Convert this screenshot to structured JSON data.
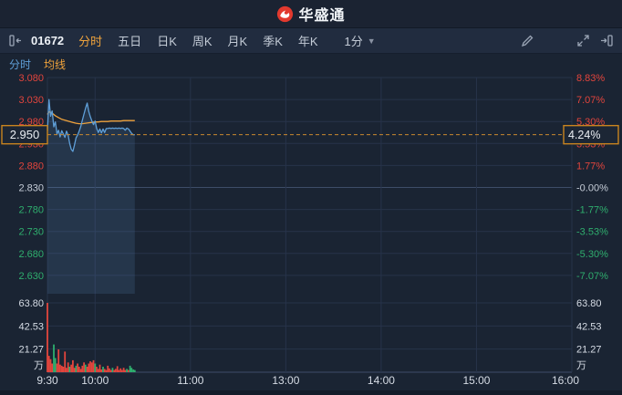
{
  "header": {
    "app_name": "华盛通"
  },
  "toolbar": {
    "stock_code": "01672",
    "tabs": [
      {
        "label": "分时",
        "active": true
      },
      {
        "label": "五日",
        "active": false
      },
      {
        "label": "日K",
        "active": false
      },
      {
        "label": "周K",
        "active": false
      },
      {
        "label": "月K",
        "active": false
      },
      {
        "label": "季K",
        "active": false
      },
      {
        "label": "年K",
        "active": false
      }
    ],
    "interval_label": "1分",
    "icons": [
      "collapse-left",
      "edit",
      "fullscreen",
      "dock-right"
    ]
  },
  "legend": {
    "items": [
      {
        "label": "分时",
        "color": "#5f9fd8"
      },
      {
        "label": "均线",
        "color": "#f0a33c"
      }
    ]
  },
  "colors": {
    "up": "#e2453d",
    "down": "#2fae6e",
    "neutral": "#c6cdd8",
    "line": "#5f9fd8",
    "line_fill": "rgba(98,152,204,0.16)",
    "ma": "#f0a33c",
    "grid": "#27334a",
    "grid_bright": "#3d4d68",
    "axis_text": "#d6dce5",
    "tag_border": "#c9841f",
    "tag_text": "#e9edf2",
    "dashed": "#c9882f"
  },
  "chart_data": {
    "type": "line",
    "title": "01672 分时图 (intraday minute chart)",
    "current": {
      "price": "2.950",
      "change_pct": "4.24%"
    },
    "price_axis": {
      "max": 3.08,
      "min": 2.63,
      "step": 0.05,
      "prev_close": 2.83,
      "left_labels": [
        "3.080",
        "3.030",
        "2.980",
        "2.930",
        "2.880",
        "2.830",
        "2.780",
        "2.730",
        "2.680",
        "2.630"
      ],
      "right_labels": [
        "8.83%",
        "7.07%",
        "5.30%",
        "3.53%",
        "1.77%",
        "-0.00%",
        "-1.77%",
        "-3.53%",
        "-5.30%",
        "-7.07%"
      ]
    },
    "volume_axis": {
      "labels": [
        "63.80",
        "42.53",
        "21.27"
      ],
      "values": [
        63.8,
        42.53,
        21.27
      ],
      "unit": "万",
      "max": 63.8
    },
    "x_axis": {
      "labels": [
        "9:30",
        "10:00",
        "11:00",
        "13:00",
        "14:00",
        "15:00",
        "16:00"
      ],
      "minutes": [
        0,
        30,
        90,
        150,
        210,
        270,
        330
      ],
      "total_minutes": 330
    },
    "series": [
      {
        "name": "分时",
        "points": [
          [
            0,
            2.958
          ],
          [
            1,
            3.03
          ],
          [
            2,
            2.992
          ],
          [
            3,
            3.004
          ],
          [
            4,
            2.968
          ],
          [
            5,
            2.979
          ],
          [
            6,
            2.952
          ],
          [
            7,
            2.96
          ],
          [
            8,
            2.945
          ],
          [
            9,
            2.959
          ],
          [
            10,
            2.952
          ],
          [
            11,
            2.944
          ],
          [
            12,
            2.958
          ],
          [
            13,
            2.949
          ],
          [
            14,
            2.93
          ],
          [
            15,
            2.917
          ],
          [
            16,
            2.912
          ],
          [
            17,
            2.926
          ],
          [
            18,
            2.943
          ],
          [
            19,
            2.949
          ],
          [
            20,
            2.958
          ],
          [
            21,
            2.969
          ],
          [
            22,
            2.983
          ],
          [
            23,
            2.997
          ],
          [
            24,
            3.01
          ],
          [
            25,
            3.022
          ],
          [
            26,
            3.003
          ],
          [
            27,
            2.991
          ],
          [
            28,
            2.981
          ],
          [
            29,
            2.973
          ],
          [
            30,
            2.981
          ],
          [
            31,
            2.964
          ],
          [
            32,
            2.955
          ],
          [
            33,
            2.963
          ],
          [
            34,
            2.954
          ],
          [
            35,
            2.963
          ],
          [
            36,
            2.955
          ],
          [
            37,
            2.964
          ],
          [
            38,
            2.964
          ],
          [
            39,
            2.965
          ],
          [
            40,
            2.964
          ],
          [
            41,
            2.965
          ],
          [
            42,
            2.964
          ],
          [
            43,
            2.965
          ],
          [
            44,
            2.964
          ],
          [
            45,
            2.965
          ],
          [
            46,
            2.964
          ],
          [
            47,
            2.965
          ],
          [
            48,
            2.964
          ],
          [
            49,
            2.96
          ],
          [
            50,
            2.965
          ],
          [
            51,
            2.963
          ],
          [
            52,
            2.958
          ],
          [
            53,
            2.953
          ],
          [
            54,
            2.95
          ],
          [
            55,
            2.95
          ]
        ]
      },
      {
        "name": "均线",
        "points": [
          [
            0,
            2.996
          ],
          [
            1,
            3.002
          ],
          [
            2,
            3.001
          ],
          [
            3,
            2.999
          ],
          [
            4,
            2.996
          ],
          [
            5,
            2.993
          ],
          [
            6,
            2.991
          ],
          [
            7,
            2.989
          ],
          [
            8,
            2.987
          ],
          [
            9,
            2.985
          ],
          [
            10,
            2.984
          ],
          [
            12,
            2.982
          ],
          [
            14,
            2.98
          ],
          [
            16,
            2.978
          ],
          [
            18,
            2.976
          ],
          [
            20,
            2.975
          ],
          [
            22,
            2.975
          ],
          [
            24,
            2.976
          ],
          [
            26,
            2.977
          ],
          [
            28,
            2.978
          ],
          [
            30,
            2.979
          ],
          [
            32,
            2.979
          ],
          [
            34,
            2.98
          ],
          [
            36,
            2.98
          ],
          [
            38,
            2.98
          ],
          [
            40,
            2.981
          ],
          [
            42,
            2.981
          ],
          [
            44,
            2.981
          ],
          [
            46,
            2.981
          ],
          [
            48,
            2.982
          ],
          [
            50,
            2.982
          ],
          [
            52,
            2.982
          ],
          [
            54,
            2.982
          ],
          [
            55,
            2.982
          ]
        ]
      }
    ],
    "volume_bars": [
      [
        0,
        63.8,
        "u"
      ],
      [
        1,
        15,
        "u"
      ],
      [
        2,
        12,
        "u"
      ],
      [
        3,
        8,
        "u"
      ],
      [
        4,
        25.5,
        "d"
      ],
      [
        5,
        13,
        "d"
      ],
      [
        6,
        8,
        "u"
      ],
      [
        7,
        21,
        "u"
      ],
      [
        8,
        7,
        "u"
      ],
      [
        9,
        6,
        "u"
      ],
      [
        10,
        5,
        "u"
      ],
      [
        11,
        19,
        "u"
      ],
      [
        12,
        4,
        "u"
      ],
      [
        13,
        9,
        "u"
      ],
      [
        14,
        5,
        "d"
      ],
      [
        15,
        7,
        "u"
      ],
      [
        16,
        11,
        "u"
      ],
      [
        17,
        4,
        "u"
      ],
      [
        18,
        6,
        "d"
      ],
      [
        19,
        8,
        "u"
      ],
      [
        20,
        5,
        "u"
      ],
      [
        21,
        3,
        "u"
      ],
      [
        22,
        6,
        "u"
      ],
      [
        23,
        9,
        "u"
      ],
      [
        24,
        7,
        "d"
      ],
      [
        25,
        5,
        "u"
      ],
      [
        26,
        8,
        "u"
      ],
      [
        27,
        10,
        "u"
      ],
      [
        28,
        9,
        "u"
      ],
      [
        29,
        11,
        "u"
      ],
      [
        30,
        8,
        "d"
      ],
      [
        31,
        5,
        "u"
      ],
      [
        32,
        3,
        "u"
      ],
      [
        33,
        7,
        "u"
      ],
      [
        34,
        2.5,
        "u"
      ],
      [
        35,
        5,
        "d"
      ],
      [
        36,
        3,
        "u"
      ],
      [
        37,
        2,
        "u"
      ],
      [
        38,
        6,
        "u"
      ],
      [
        39,
        3.5,
        "u"
      ],
      [
        40,
        2,
        "u"
      ],
      [
        41,
        4,
        "d"
      ],
      [
        42,
        2,
        "u"
      ],
      [
        43,
        3,
        "u"
      ],
      [
        44,
        5.5,
        "u"
      ],
      [
        45,
        2,
        "u"
      ],
      [
        46,
        3.5,
        "u"
      ],
      [
        47,
        2,
        "u"
      ],
      [
        48,
        4,
        "u"
      ],
      [
        49,
        2,
        "u"
      ],
      [
        50,
        3,
        "d"
      ],
      [
        51,
        2,
        "u"
      ],
      [
        52,
        6,
        "d"
      ],
      [
        53,
        4,
        "d"
      ],
      [
        54,
        2.5,
        "d"
      ],
      [
        55,
        2,
        "d"
      ]
    ]
  }
}
